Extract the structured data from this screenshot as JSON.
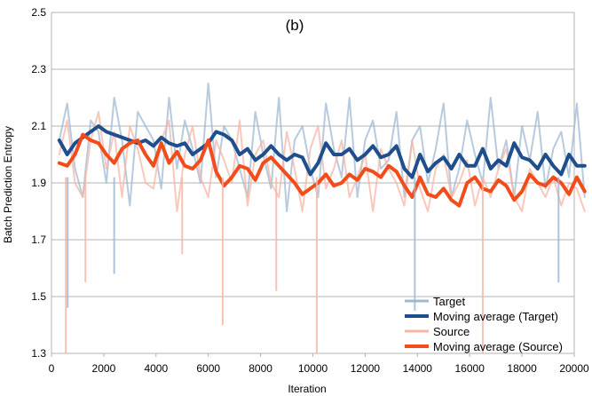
{
  "chart_data": {
    "type": "line",
    "title": "(b)",
    "xlabel": "Iteration",
    "ylabel": "Batch Prediction Entropy",
    "xlim": [
      0,
      20000
    ],
    "ylim": [
      1.3,
      2.5
    ],
    "x_ticks": [
      "0",
      "2000",
      "4000",
      "6000",
      "8000",
      "10000",
      "12000",
      "14000",
      "16000",
      "18000",
      "20000"
    ],
    "y_ticks": [
      "1.3",
      "1.5",
      "1.7",
      "1.9",
      "2.1",
      "2.3",
      "2.5"
    ],
    "grid": "horizontal",
    "legend_position": "bottom-right",
    "x_start": 300,
    "x_step": 300,
    "series": [
      {
        "name": "Target",
        "color": "#9fb8d3",
        "style": "raw",
        "values": [
          2.05,
          2.18,
          1.95,
          1.85,
          2.12,
          2.08,
          1.9,
          2.2,
          2.05,
          1.82,
          2.15,
          2.1,
          2.05,
          1.88,
          2.2,
          1.95,
          2.12,
          2.02,
          1.9,
          2.25,
          1.92,
          2.1,
          2.05,
          1.95,
          1.85,
          2.15,
          2.0,
          1.88,
          2.2,
          1.8,
          2.05,
          2.1,
          1.95,
          1.85,
          2.18,
          2.02,
          1.92,
          2.2,
          1.85,
          2.05,
          2.12,
          1.95,
          1.98,
          2.15,
          1.85,
          2.05,
          2.1,
          1.9,
          2.02,
          2.18,
          1.85,
          1.95,
          2.12,
          2.0,
          1.9,
          2.2,
          1.95,
          2.05,
          1.85,
          2.1,
          1.98,
          2.15,
          1.88,
          2.02,
          2.08,
          1.92,
          2.18,
          1.85
        ]
      },
      {
        "name": "Moving average (Target)",
        "color": "#1f4e8c",
        "style": "ma",
        "values": [
          2.05,
          2.0,
          2.04,
          2.06,
          2.08,
          2.1,
          2.08,
          2.07,
          2.06,
          2.05,
          2.04,
          2.05,
          2.03,
          2.06,
          2.04,
          2.03,
          2.04,
          2.0,
          2.02,
          2.04,
          2.08,
          2.07,
          2.05,
          2.0,
          2.02,
          1.98,
          2.0,
          2.03,
          2.0,
          1.98,
          2.0,
          1.99,
          1.93,
          1.97,
          2.04,
          2.0,
          2.0,
          2.02,
          1.98,
          2.0,
          2.03,
          1.99,
          2.0,
          2.03,
          1.95,
          1.92,
          2.0,
          1.94,
          1.97,
          1.99,
          1.95,
          2.0,
          1.96,
          1.96,
          2.02,
          1.95,
          1.98,
          1.96,
          2.04,
          1.99,
          1.98,
          1.95,
          2.0,
          1.96,
          1.93,
          2.0,
          1.96,
          1.96
        ]
      },
      {
        "name": "Source",
        "color": "#f7b6a6",
        "style": "raw",
        "values": [
          2.0,
          2.12,
          1.9,
          1.85,
          2.05,
          2.15,
          1.95,
          2.08,
          1.85,
          2.1,
          2.02,
          1.9,
          1.88,
          2.05,
          2.12,
          1.8,
          2.0,
          2.1,
          1.92,
          1.85,
          2.05,
          1.98,
          1.9,
          2.12,
          1.82,
          2.0,
          2.05,
          1.9,
          1.85,
          2.08,
          1.95,
          1.8,
          2.02,
          2.1,
          1.88,
          1.95,
          2.05,
          1.85,
          1.92,
          2.0,
          1.8,
          2.02,
          1.95,
          1.9,
          1.82,
          2.05,
          1.88,
          1.8,
          1.95,
          2.0,
          1.85,
          1.9,
          1.98,
          1.82,
          1.92,
          1.85,
          1.95,
          2.02,
          1.85,
          1.8,
          1.95,
          1.9,
          1.85,
          1.92,
          1.82,
          1.9,
          1.88,
          1.8
        ]
      },
      {
        "name": "Moving average (Source)",
        "color": "#f24c1a",
        "style": "ma",
        "values": [
          1.97,
          1.96,
          2.0,
          2.07,
          2.05,
          2.04,
          2.0,
          1.97,
          2.02,
          2.04,
          2.05,
          2.0,
          1.96,
          2.04,
          1.97,
          2.01,
          1.96,
          1.95,
          1.98,
          2.05,
          1.94,
          1.89,
          1.92,
          1.96,
          1.95,
          1.91,
          1.97,
          1.99,
          1.96,
          1.93,
          1.9,
          1.86,
          1.88,
          1.9,
          1.93,
          1.89,
          1.9,
          1.93,
          1.91,
          1.95,
          1.94,
          1.92,
          1.96,
          1.94,
          1.89,
          1.85,
          1.92,
          1.86,
          1.85,
          1.88,
          1.84,
          1.82,
          1.9,
          1.92,
          1.88,
          1.87,
          1.91,
          1.89,
          1.84,
          1.87,
          1.93,
          1.9,
          1.89,
          1.92,
          1.9,
          1.86,
          1.92,
          1.87
        ]
      }
    ],
    "spikes": [
      {
        "series": 2,
        "x": 550,
        "y": 1.3
      },
      {
        "series": 0,
        "x": 620,
        "y": 1.46
      },
      {
        "series": 2,
        "x": 1300,
        "y": 1.55
      },
      {
        "series": 0,
        "x": 2400,
        "y": 1.58
      },
      {
        "series": 2,
        "x": 5000,
        "y": 1.65
      },
      {
        "series": 2,
        "x": 6550,
        "y": 1.4
      },
      {
        "series": 2,
        "x": 8600,
        "y": 1.52
      },
      {
        "series": 2,
        "x": 10150,
        "y": 1.3
      },
      {
        "series": 0,
        "x": 13900,
        "y": 1.45
      },
      {
        "series": 2,
        "x": 16500,
        "y": 1.3
      },
      {
        "series": 0,
        "x": 19400,
        "y": 1.55
      }
    ]
  }
}
